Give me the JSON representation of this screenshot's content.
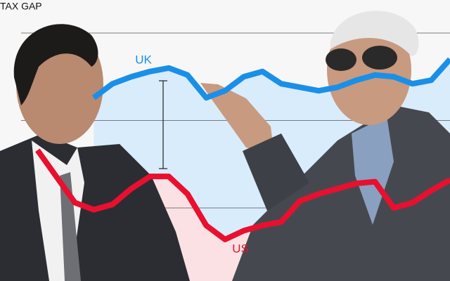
{
  "chart_data": {
    "type": "line",
    "title": "TAX GAP",
    "x": [
      0,
      1,
      2,
      3,
      4,
      5,
      6,
      7,
      8,
      9,
      10,
      11,
      12,
      13,
      14,
      15,
      16,
      17,
      18,
      19,
      20,
      21,
      22,
      23,
      24
    ],
    "xlim": [
      0,
      24
    ],
    "ylim": [
      -40,
      100
    ],
    "gridlines": [
      0,
      50,
      100
    ],
    "series": [
      {
        "name": "UK",
        "color": "#1a8fe8",
        "values": [
          null,
          null,
          null,
          null,
          null,
          63,
          71,
          75,
          78,
          80,
          76,
          63,
          67,
          75,
          78,
          71,
          69,
          67,
          69,
          73,
          76,
          75,
          71,
          73,
          85
        ]
      },
      {
        "name": "US",
        "color": "#e8102e",
        "values": [
          null,
          null,
          33,
          18,
          3,
          -1,
          2,
          11,
          18,
          18,
          8,
          -10,
          -18,
          -13,
          -10,
          -8,
          4,
          8,
          11,
          14,
          15,
          0,
          3,
          10,
          16
        ]
      }
    ]
  }
}
